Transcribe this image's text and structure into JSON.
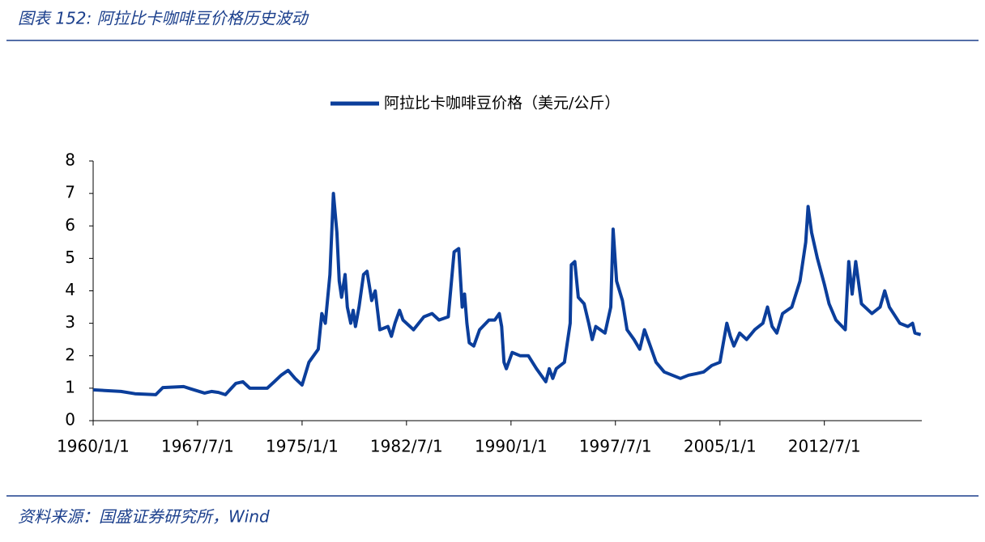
{
  "header": {
    "title": "图表 152:  阿拉比卡咖啡豆价格历史波动"
  },
  "source": "资料来源：国盛证券研究所，Wind",
  "chart_data": {
    "type": "line",
    "x": [
      "1960/1/1",
      "1962/1/1",
      "1963/1/1",
      "1964/7/1",
      "1965/1/1",
      "1966/7/1",
      "1967/1/1",
      "1968/1/1",
      "1968/7/1",
      "1969/1/1",
      "1969/7/1",
      "1970/4/1",
      "1970/10/1",
      "1971/4/1",
      "1972/7/1",
      "1973/1/1",
      "1973/7/1",
      "1974/1/1",
      "1974/7/1",
      "1975/1/1",
      "1975/7/1",
      "1976/3/1",
      "1976/6/1",
      "1976/9/1",
      "1977/1/1",
      "1977/4/1",
      "1977/7/1",
      "1977/9/1",
      "1977/11/1",
      "1978/2/1",
      "1978/4/1",
      "1978/7/1",
      "1978/9/1",
      "1978/11/1",
      "1979/2/1",
      "1979/6/1",
      "1979/9/1",
      "1980/1/1",
      "1980/4/1",
      "1980/8/1",
      "1981/3/1",
      "1981/6/1",
      "1981/9/1",
      "1982/1/1",
      "1982/4/1",
      "1983/1/1",
      "1983/10/1",
      "1984/5/1",
      "1984/11/1",
      "1985/7/1",
      "1985/12/1",
      "1986/4/1",
      "1986/7/1",
      "1986/9/1",
      "1986/11/1",
      "1987/1/1",
      "1987/5/1",
      "1987/10/1",
      "1988/6/1",
      "1988/11/1",
      "1989/3/1",
      "1989/5/1",
      "1989/7/1",
      "1989/9/1",
      "1990/2/1",
      "1990/9/1",
      "1991/4/1",
      "1991/11/1",
      "1992/7/1",
      "1992/10/1",
      "1993/1/1",
      "1993/4/1",
      "1993/11/1",
      "1994/4/1",
      "1994/5/1",
      "1994/8/1",
      "1994/11/1",
      "1995/4/1",
      "1995/8/1",
      "1995/11/1",
      "1996/2/1",
      "1996/10/1",
      "1997/3/1",
      "1997/5/1",
      "1997/8/1",
      "1998/1/1",
      "1998/5/1",
      "1998/11/1",
      "1999/4/1",
      "1999/8/1",
      "2000/1/1",
      "2000/6/1",
      "2001/1/1",
      "2001/8/1",
      "2002/3/1",
      "2002/10/1",
      "2003/5/1",
      "2003/11/1",
      "2004/6/1",
      "2005/1/1",
      "2005/4/1",
      "2005/7/1",
      "2005/10/1",
      "2006/1/1",
      "2006/6/1",
      "2006/12/1",
      "2007/7/1",
      "2008/2/1",
      "2008/6/1",
      "2008/10/1",
      "2009/2/1",
      "2009/7/1",
      "2010/3/1",
      "2010/10/1",
      "2011/3/1",
      "2011/5/1",
      "2011/8/1",
      "2012/1/1",
      "2012/7/1",
      "2012/11/1",
      "2013/5/1",
      "2014/1/1",
      "2014/4/1",
      "2014/7/1",
      "2014/10/1",
      "2015/3/1",
      "2015/12/1",
      "2016/7/1",
      "2016/11/1",
      "2017/3/1",
      "2017/12/1",
      "2018/7/1",
      "2018/11/1",
      "2019/1/1",
      "2019/6/1"
    ],
    "series": [
      {
        "name": "阿拉比卡咖啡豆价格（美元/公斤）",
        "color": "#0b3e9b",
        "values": [
          0.95,
          0.9,
          0.83,
          0.8,
          1.02,
          1.05,
          0.98,
          0.85,
          0.9,
          0.87,
          0.8,
          1.15,
          1.2,
          1.0,
          1.0,
          1.2,
          1.4,
          1.55,
          1.3,
          1.1,
          1.8,
          2.2,
          3.3,
          3.0,
          4.5,
          7.0,
          5.8,
          4.3,
          3.8,
          4.5,
          3.5,
          3.0,
          3.4,
          2.9,
          3.5,
          4.5,
          4.6,
          3.7,
          4.0,
          2.8,
          2.9,
          2.6,
          3.0,
          3.4,
          3.1,
          2.8,
          3.2,
          3.3,
          3.1,
          3.2,
          5.2,
          5.3,
          3.5,
          3.9,
          3.0,
          2.4,
          2.3,
          2.8,
          3.1,
          3.1,
          3.3,
          2.9,
          1.8,
          1.6,
          2.1,
          2.0,
          2.0,
          1.6,
          1.2,
          1.6,
          1.3,
          1.6,
          1.8,
          3.0,
          4.8,
          4.9,
          3.8,
          3.6,
          3.0,
          2.5,
          2.9,
          2.7,
          3.5,
          5.9,
          4.3,
          3.7,
          2.8,
          2.5,
          2.2,
          2.8,
          2.3,
          1.8,
          1.5,
          1.4,
          1.3,
          1.4,
          1.45,
          1.5,
          1.7,
          1.8,
          2.4,
          3.0,
          2.6,
          2.3,
          2.7,
          2.5,
          2.8,
          3.0,
          3.5,
          2.9,
          2.7,
          3.3,
          3.5,
          4.3,
          5.5,
          6.6,
          5.8,
          5.0,
          4.2,
          3.6,
          3.1,
          2.8,
          4.9,
          3.9,
          4.9,
          3.6,
          3.3,
          3.5,
          4.0,
          3.5,
          3.0,
          2.9,
          3.0,
          2.7,
          2.65
        ]
      }
    ],
    "xlim": [
      "1960/1/1",
      "2019/7/1"
    ],
    "xticks": [
      "1960/1/1",
      "1967/7/1",
      "1975/1/1",
      "1982/7/1",
      "1990/1/1",
      "1997/7/1",
      "2005/1/1",
      "2012/7/1"
    ],
    "ylim": [
      0,
      8
    ],
    "yticks": [
      0,
      1,
      2,
      3,
      4,
      5,
      6,
      7,
      8
    ],
    "grid": false,
    "legend": "top"
  }
}
